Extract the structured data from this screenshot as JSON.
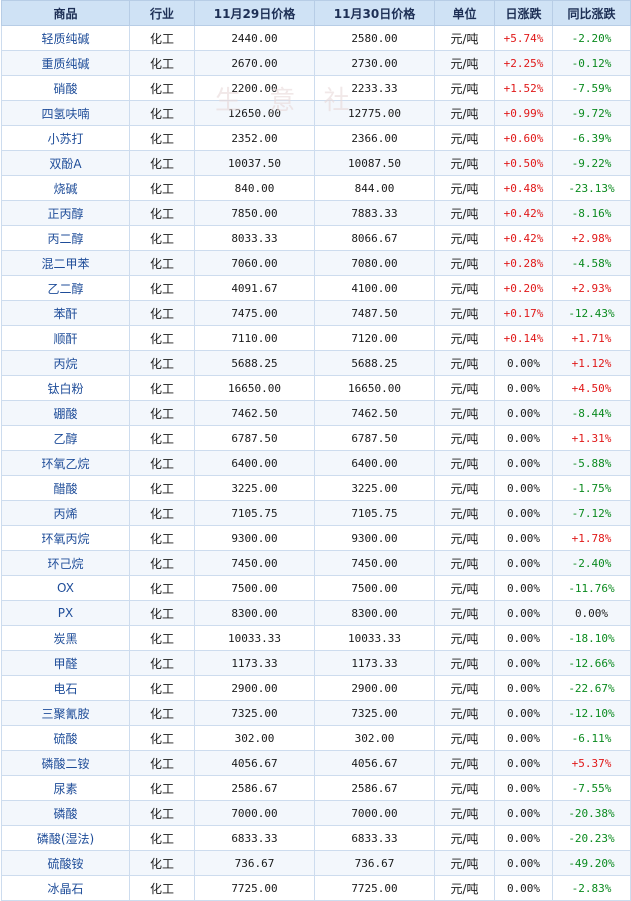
{
  "headers": [
    "商品",
    "行业",
    "11月29日价格",
    "11月30日价格",
    "单位",
    "日涨跌",
    "同比涨跌"
  ],
  "rows": [
    [
      "轻质纯碱",
      "化工",
      "2440.00",
      "2580.00",
      "元/吨",
      "+5.74%",
      "-2.20%"
    ],
    [
      "重质纯碱",
      "化工",
      "2670.00",
      "2730.00",
      "元/吨",
      "+2.25%",
      "-0.12%"
    ],
    [
      "硝酸",
      "化工",
      "2200.00",
      "2233.33",
      "元/吨",
      "+1.52%",
      "-7.59%"
    ],
    [
      "四氢呋喃",
      "化工",
      "12650.00",
      "12775.00",
      "元/吨",
      "+0.99%",
      "-9.72%"
    ],
    [
      "小苏打",
      "化工",
      "2352.00",
      "2366.00",
      "元/吨",
      "+0.60%",
      "-6.39%"
    ],
    [
      "双酚A",
      "化工",
      "10037.50",
      "10087.50",
      "元/吨",
      "+0.50%",
      "-9.22%"
    ],
    [
      "烧碱",
      "化工",
      "840.00",
      "844.00",
      "元/吨",
      "+0.48%",
      "-23.13%"
    ],
    [
      "正丙醇",
      "化工",
      "7850.00",
      "7883.33",
      "元/吨",
      "+0.42%",
      "-8.16%"
    ],
    [
      "丙二醇",
      "化工",
      "8033.33",
      "8066.67",
      "元/吨",
      "+0.42%",
      "+2.98%"
    ],
    [
      "混二甲苯",
      "化工",
      "7060.00",
      "7080.00",
      "元/吨",
      "+0.28%",
      "-4.58%"
    ],
    [
      "乙二醇",
      "化工",
      "4091.67",
      "4100.00",
      "元/吨",
      "+0.20%",
      "+2.93%"
    ],
    [
      "苯酐",
      "化工",
      "7475.00",
      "7487.50",
      "元/吨",
      "+0.17%",
      "-12.43%"
    ],
    [
      "顺酐",
      "化工",
      "7110.00",
      "7120.00",
      "元/吨",
      "+0.14%",
      "+1.71%"
    ],
    [
      "丙烷",
      "化工",
      "5688.25",
      "5688.25",
      "元/吨",
      "0.00%",
      "+1.12%"
    ],
    [
      "钛白粉",
      "化工",
      "16650.00",
      "16650.00",
      "元/吨",
      "0.00%",
      "+4.50%"
    ],
    [
      "硼酸",
      "化工",
      "7462.50",
      "7462.50",
      "元/吨",
      "0.00%",
      "-8.44%"
    ],
    [
      "乙醇",
      "化工",
      "6787.50",
      "6787.50",
      "元/吨",
      "0.00%",
      "+1.31%"
    ],
    [
      "环氧乙烷",
      "化工",
      "6400.00",
      "6400.00",
      "元/吨",
      "0.00%",
      "-5.88%"
    ],
    [
      "醋酸",
      "化工",
      "3225.00",
      "3225.00",
      "元/吨",
      "0.00%",
      "-1.75%"
    ],
    [
      "丙烯",
      "化工",
      "7105.75",
      "7105.75",
      "元/吨",
      "0.00%",
      "-7.12%"
    ],
    [
      "环氧丙烷",
      "化工",
      "9300.00",
      "9300.00",
      "元/吨",
      "0.00%",
      "+1.78%"
    ],
    [
      "环己烷",
      "化工",
      "7450.00",
      "7450.00",
      "元/吨",
      "0.00%",
      "-2.40%"
    ],
    [
      "OX",
      "化工",
      "7500.00",
      "7500.00",
      "元/吨",
      "0.00%",
      "-11.76%"
    ],
    [
      "PX",
      "化工",
      "8300.00",
      "8300.00",
      "元/吨",
      "0.00%",
      "0.00%"
    ],
    [
      "炭黑",
      "化工",
      "10033.33",
      "10033.33",
      "元/吨",
      "0.00%",
      "-18.10%"
    ],
    [
      "甲醛",
      "化工",
      "1173.33",
      "1173.33",
      "元/吨",
      "0.00%",
      "-12.66%"
    ],
    [
      "电石",
      "化工",
      "2900.00",
      "2900.00",
      "元/吨",
      "0.00%",
      "-22.67%"
    ],
    [
      "三聚氰胺",
      "化工",
      "7325.00",
      "7325.00",
      "元/吨",
      "0.00%",
      "-12.10%"
    ],
    [
      "硫酸",
      "化工",
      "302.00",
      "302.00",
      "元/吨",
      "0.00%",
      "-6.11%"
    ],
    [
      "磷酸二铵",
      "化工",
      "4056.67",
      "4056.67",
      "元/吨",
      "0.00%",
      "+5.37%"
    ],
    [
      "尿素",
      "化工",
      "2586.67",
      "2586.67",
      "元/吨",
      "0.00%",
      "-7.55%"
    ],
    [
      "磷酸",
      "化工",
      "7000.00",
      "7000.00",
      "元/吨",
      "0.00%",
      "-20.38%"
    ],
    [
      "磷酸(湿法)",
      "化工",
      "6833.33",
      "6833.33",
      "元/吨",
      "0.00%",
      "-20.23%"
    ],
    [
      "硫酸铵",
      "化工",
      "736.67",
      "736.67",
      "元/吨",
      "0.00%",
      "-49.20%"
    ],
    [
      "冰晶石",
      "化工",
      "7725.00",
      "7725.00",
      "元/吨",
      "0.00%",
      "-2.83%"
    ]
  ],
  "watermark": "生 意 社",
  "colors": {
    "up": "#e01818",
    "down": "#0a8a1e",
    "header_bg": "#cfe2f5"
  }
}
